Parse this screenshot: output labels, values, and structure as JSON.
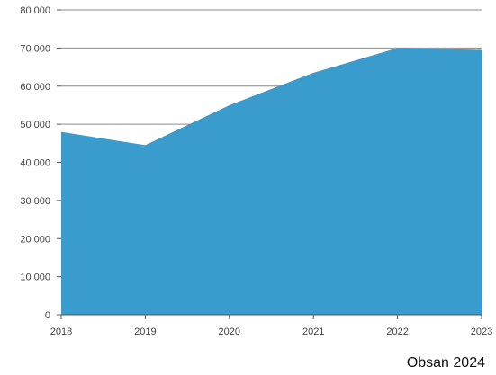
{
  "chart_data": {
    "type": "area",
    "x": [
      "2018",
      "2019",
      "2020",
      "2021",
      "2022",
      "2023"
    ],
    "series": [
      {
        "values": [
          48000,
          44500,
          55000,
          63500,
          70000,
          69500
        ]
      }
    ],
    "ylim": [
      0,
      80000
    ],
    "yticks": [
      0,
      10000,
      20000,
      30000,
      40000,
      50000,
      60000,
      70000,
      80000
    ],
    "ytick_labels": [
      "0",
      "10 000",
      "20 000",
      "30 000",
      "40 000",
      "50 000",
      "60 000",
      "70 000",
      "80 000"
    ],
    "grid": "horizontal",
    "title": "",
    "xlabel": "",
    "ylabel": "",
    "color": "#3a9bcd"
  },
  "source": "Obsan 2024"
}
